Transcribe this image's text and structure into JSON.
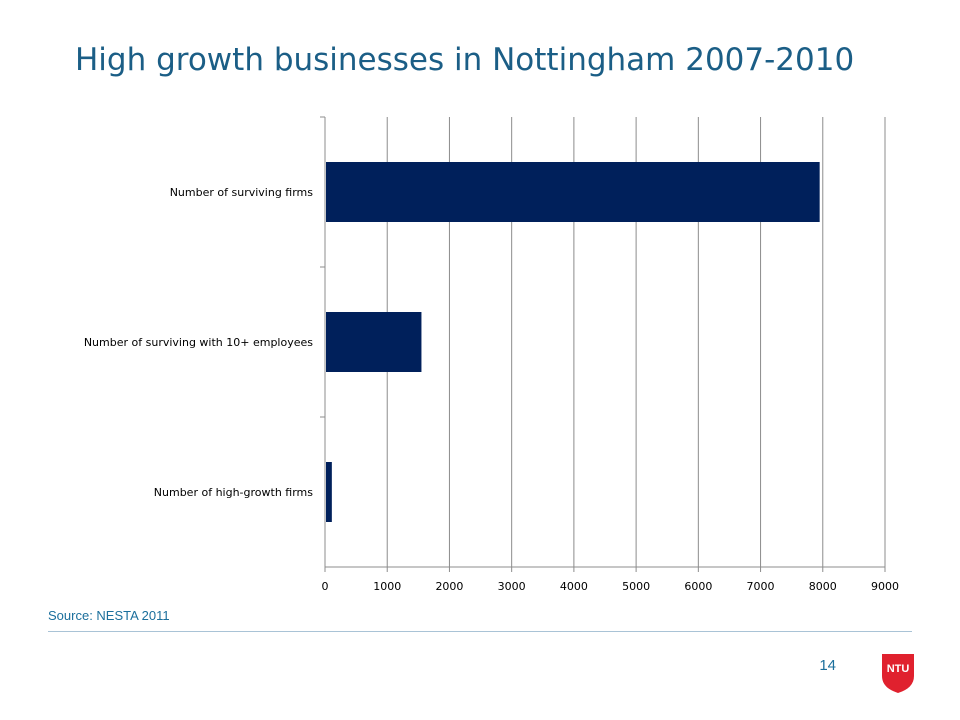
{
  "slide": {
    "title": "High growth businesses in Nottingham 2007-2010",
    "source": "Source: NESTA 2011",
    "page_number": "14",
    "logo_text": "NTU"
  },
  "colors": {
    "title": "#1b5e86",
    "bar": "#00205b",
    "grid": "#8c8c8c",
    "logo": "#e0212e"
  },
  "chart_data": {
    "type": "bar",
    "orientation": "horizontal",
    "categories": [
      "Number of surviving firms",
      "Number of surviving with 10+ employees",
      "Number of high-growth firms"
    ],
    "values": [
      7950,
      1550,
      110
    ],
    "xlim": [
      0,
      9000
    ],
    "xticks": [
      "0",
      "1000",
      "2000",
      "3000",
      "4000",
      "5000",
      "6000",
      "7000",
      "8000",
      "9000"
    ],
    "grid": true,
    "legend": "none"
  }
}
